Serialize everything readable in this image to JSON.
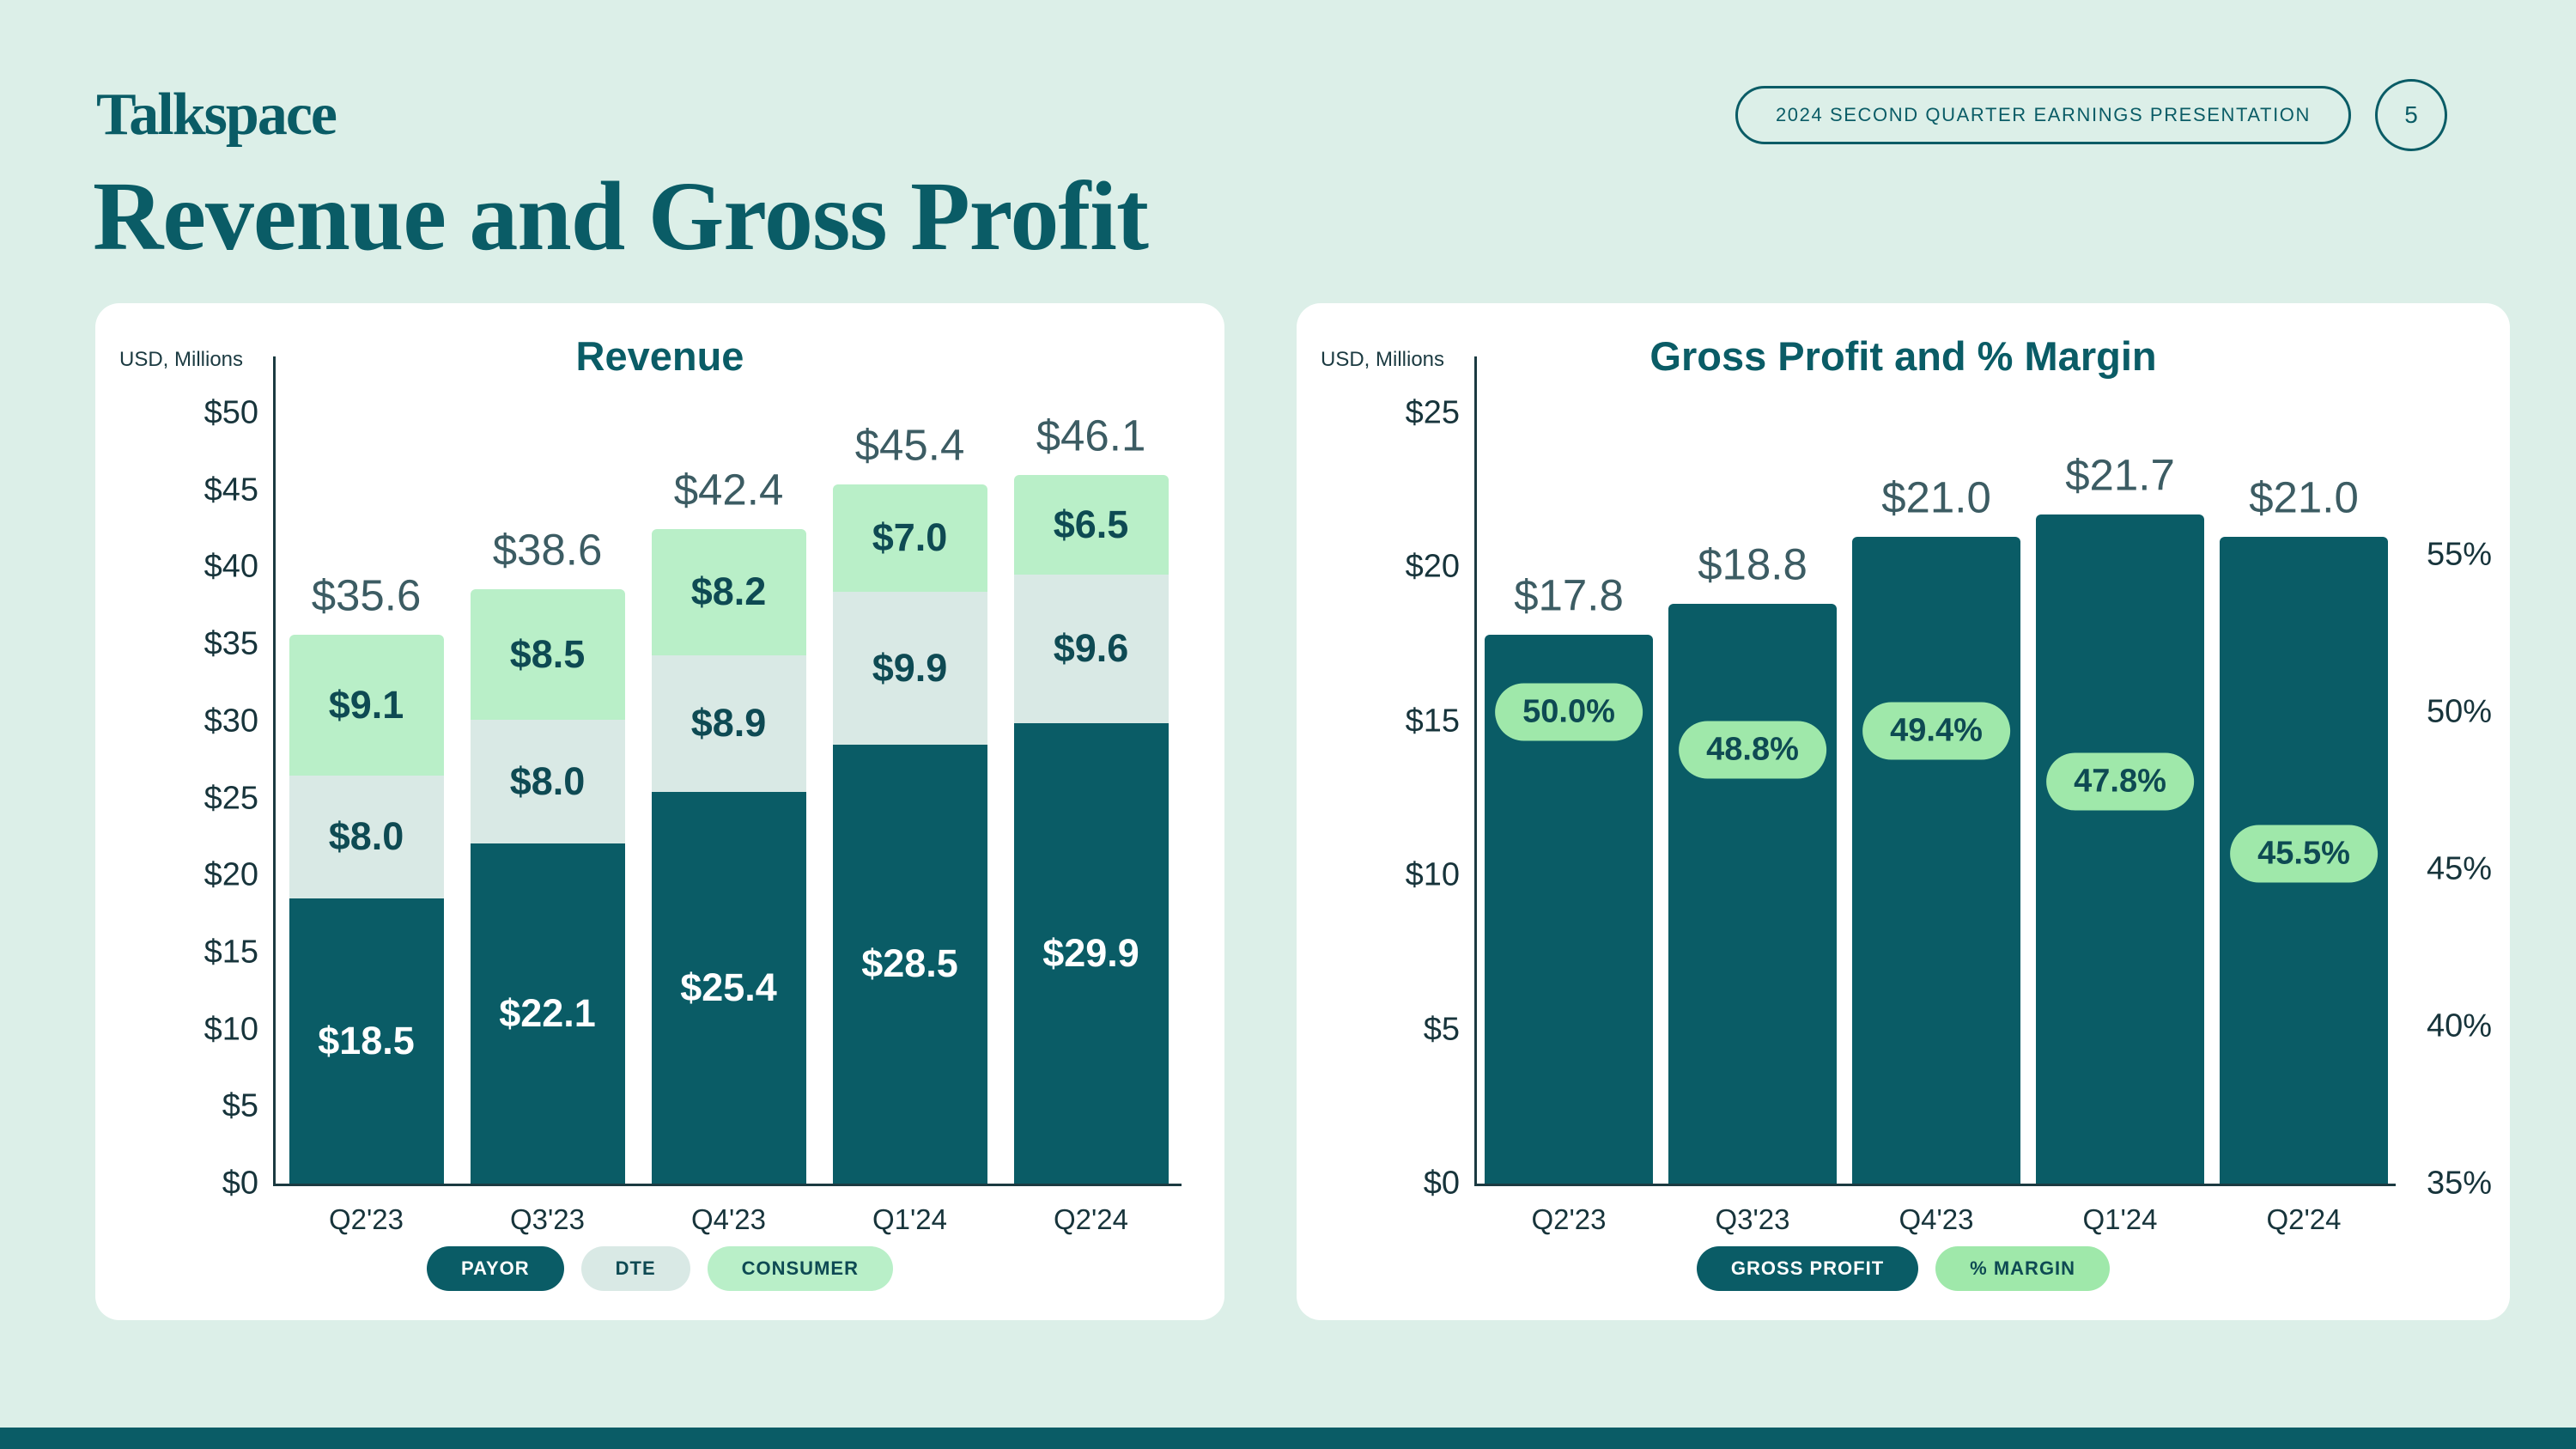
{
  "page": {
    "logo": "Talkspace",
    "badge": "2024 SECOND QUARTER EARNINGS PRESENTATION",
    "page_number": "5",
    "title": "Revenue and Gross Profit"
  },
  "colors": {
    "background": "#dcefe8",
    "teal_dark": "#0a5c66",
    "dte_fill": "#d9e9e5",
    "consumer_fill": "#b9efc8",
    "margin_pill": "#9fe8aa",
    "pill_text": "#0e4a53",
    "axis_ink": "#1b3a41",
    "muted_label": "#3c5c63",
    "card": "#ffffff"
  },
  "chart_data": [
    {
      "type": "bar",
      "stacked": true,
      "title": "Revenue",
      "units_label": "USD, Millions",
      "categories": [
        "Q2'23",
        "Q3'23",
        "Q4'23",
        "Q1'24",
        "Q2'24"
      ],
      "series": [
        {
          "name": "PAYOR",
          "values": [
            18.5,
            22.1,
            25.4,
            28.5,
            29.9
          ],
          "labels": [
            "$18.5",
            "$22.1",
            "$25.4",
            "$28.5",
            "$29.9"
          ],
          "color": "#0a5c66",
          "label_color": "#ffffff"
        },
        {
          "name": "DTE",
          "values": [
            8.0,
            8.0,
            8.9,
            9.9,
            9.6
          ],
          "labels": [
            "$8.0",
            "$8.0",
            "$8.9",
            "$9.9",
            "$9.6"
          ],
          "color": "#d9e9e5",
          "label_color": "#0e4a53"
        },
        {
          "name": "CONSUMER",
          "values": [
            9.1,
            8.5,
            8.2,
            7.0,
            6.5
          ],
          "labels": [
            "$9.1",
            "$8.5",
            "$8.2",
            "$7.0",
            "$6.5"
          ],
          "color": "#b9efc8",
          "label_color": "#0e4a53"
        }
      ],
      "totals": [
        "$35.6",
        "$38.6",
        "$42.4",
        "$45.4",
        "$46.1"
      ],
      "ylim": [
        0,
        50
      ],
      "yticks": [
        "$0",
        "$5",
        "$10",
        "$15",
        "$20",
        "$25",
        "$30",
        "$35",
        "$40",
        "$45",
        "$50"
      ],
      "legend": [
        {
          "label": "PAYOR",
          "bg": "#0a5c66",
          "fg": "#ffffff"
        },
        {
          "label": "DTE",
          "bg": "#d9e9e5",
          "fg": "#0e4a53"
        },
        {
          "label": "CONSUMER",
          "bg": "#b9efc8",
          "fg": "#0e4a53"
        }
      ]
    },
    {
      "type": "bar",
      "title": "Gross Profit and % Margin",
      "units_label": "USD, Millions",
      "categories": [
        "Q2'23",
        "Q3'23",
        "Q4'23",
        "Q1'24",
        "Q2'24"
      ],
      "series": [
        {
          "name": "GROSS PROFIT",
          "values": [
            17.8,
            18.8,
            21.0,
            21.7,
            21.0
          ],
          "labels": [
            "$17.8",
            "$18.8",
            "$21.0",
            "$21.7",
            "$21.0"
          ],
          "color": "#0a5c66"
        }
      ],
      "margin_series": {
        "name": "% MARGIN",
        "values": [
          50.0,
          48.8,
          49.4,
          47.8,
          45.5
        ],
        "labels": [
          "50.0%",
          "48.8%",
          "49.4%",
          "47.8%",
          "45.5%"
        ]
      },
      "ylim": [
        0,
        25
      ],
      "yticks": [
        "$0",
        "$5",
        "$10",
        "$15",
        "$20",
        "$25"
      ],
      "y2lim": [
        35,
        55
      ],
      "y2_step": 5,
      "y2ticks": [
        "35%",
        "40%",
        "45%",
        "50%",
        "55%"
      ],
      "legend": [
        {
          "label": "GROSS PROFIT",
          "bg": "#0a5c66",
          "fg": "#ffffff"
        },
        {
          "label": "% MARGIN",
          "bg": "#9fe8aa",
          "fg": "#0e4a53"
        }
      ]
    }
  ]
}
